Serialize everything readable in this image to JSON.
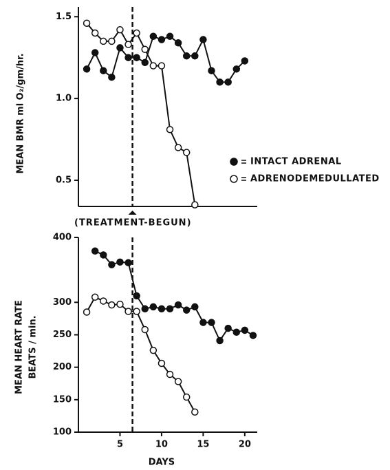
{
  "chart_data": [
    {
      "type": "line",
      "y_label": "MEAN BMR ml O₂/gm/hr.",
      "annotation": "(TREATMENT-BEGUN)",
      "reference_x": 6.5,
      "xlim": [
        0,
        21.5
      ],
      "ylim": [
        0.34,
        1.56
      ],
      "yticks": [
        {
          "value": 0.5,
          "label": "0.5"
        },
        {
          "value": 1,
          "label": "1.0"
        },
        {
          "value": 1.5,
          "label": "1.5"
        }
      ],
      "legend": "right",
      "series": [
        {
          "name": "INTACT ADRENAL",
          "color": "#111111",
          "filled": true,
          "x": [
            1,
            2,
            3,
            4,
            5,
            6,
            7,
            8,
            9,
            10,
            11,
            12,
            13,
            14,
            15,
            16,
            17,
            18,
            19,
            20
          ],
          "values": [
            1.18,
            1.28,
            1.17,
            1.13,
            1.31,
            1.25,
            1.25,
            1.22,
            1.38,
            1.36,
            1.38,
            1.34,
            1.26,
            1.26,
            1.36,
            1.17,
            1.1,
            1.1,
            1.18,
            1.23
          ]
        },
        {
          "name": "ADRENODEMEDULLATED",
          "color": "#111111",
          "filled": false,
          "x": [
            1,
            2,
            3,
            4,
            5,
            6,
            7,
            8,
            9,
            10,
            11,
            12,
            13,
            14
          ],
          "values": [
            1.46,
            1.4,
            1.35,
            1.35,
            1.42,
            1.33,
            1.4,
            1.3,
            1.2,
            1.2,
            0.81,
            0.7,
            0.67,
            0.35
          ]
        }
      ]
    },
    {
      "type": "line",
      "y_label": [
        "MEAN HEART RATE",
        "BEATS / min."
      ],
      "x_label": "DAYS",
      "reference_x": 6.5,
      "xlim": [
        0,
        21.5
      ],
      "ylim": [
        100,
        400
      ],
      "xticks": [
        5,
        10,
        15,
        20
      ],
      "yticks": [
        100,
        150,
        200,
        250,
        300,
        400
      ],
      "series": [
        {
          "name": "INTACT ADRENAL",
          "color": "#111111",
          "filled": true,
          "x": [
            2,
            3,
            4,
            5,
            6,
            7,
            8,
            9,
            10,
            11,
            12,
            13,
            14,
            15,
            16,
            17,
            18,
            19,
            20,
            21
          ],
          "values": [
            379,
            373,
            358,
            362,
            361,
            310,
            290,
            293,
            290,
            290,
            296,
            288,
            293,
            269,
            269,
            241,
            260,
            254,
            257,
            249
          ]
        },
        {
          "name": "ADRENODEMEDULLATED",
          "color": "#111111",
          "filled": false,
          "x": [
            1,
            2,
            3,
            4,
            5,
            6,
            7,
            8,
            9,
            10,
            11,
            12,
            13,
            14
          ],
          "values": [
            285,
            308,
            302,
            296,
            297,
            286,
            286,
            258,
            226,
            206,
            189,
            178,
            154,
            131
          ]
        }
      ]
    }
  ]
}
